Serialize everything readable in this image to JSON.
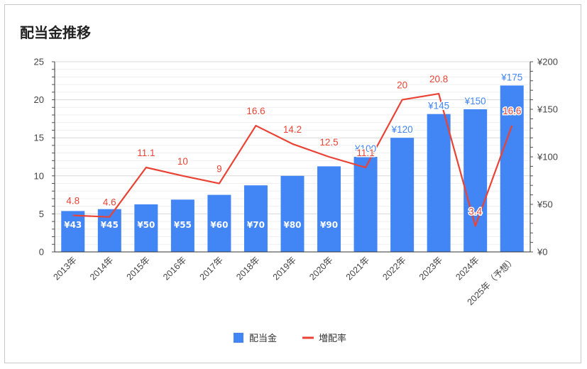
{
  "chart_data": {
    "type": "bar",
    "title": "配当金推移",
    "categories": [
      "2013年",
      "2014年",
      "2015年",
      "2016年",
      "2017年",
      "2018年",
      "2019年",
      "2020年",
      "2021年",
      "2022年",
      "2023年",
      "2024年",
      "2025年（予想）"
    ],
    "series": [
      {
        "name": "配当金",
        "type": "bar",
        "axis": "right",
        "values": [
          43,
          45,
          50,
          55,
          60,
          70,
          80,
          90,
          100,
          120,
          145,
          150,
          175
        ],
        "labels": [
          "¥43",
          "¥45",
          "¥50",
          "¥55",
          "¥60",
          "¥70",
          "¥80",
          "¥90",
          "¥100",
          "¥120",
          "¥145",
          "¥150",
          "¥175"
        ],
        "color": "#4285f4"
      },
      {
        "name": "増配率",
        "type": "line",
        "axis": "left",
        "values": [
          4.8,
          4.6,
          11.1,
          10,
          9,
          16.6,
          14.2,
          12.5,
          11.1,
          20,
          20.8,
          3.4,
          16.6
        ],
        "labels": [
          "4.8",
          "4.6",
          "11.1",
          "10",
          "9",
          "16.6",
          "14.2",
          "12.5",
          "11.1",
          "20",
          "20.8",
          "3.4",
          "16.6"
        ],
        "color": "#ea4335"
      }
    ],
    "left_axis": {
      "ylim": [
        0,
        25
      ],
      "ticks": [
        "0",
        "5",
        "10",
        "15",
        "20",
        "25"
      ]
    },
    "right_axis": {
      "ylim": [
        0,
        200
      ],
      "ticks": [
        "¥0",
        "¥50",
        "¥100",
        "¥150",
        "¥200"
      ]
    },
    "grid": true,
    "legend": "bottom",
    "xlabel": "",
    "ylabel": ""
  }
}
